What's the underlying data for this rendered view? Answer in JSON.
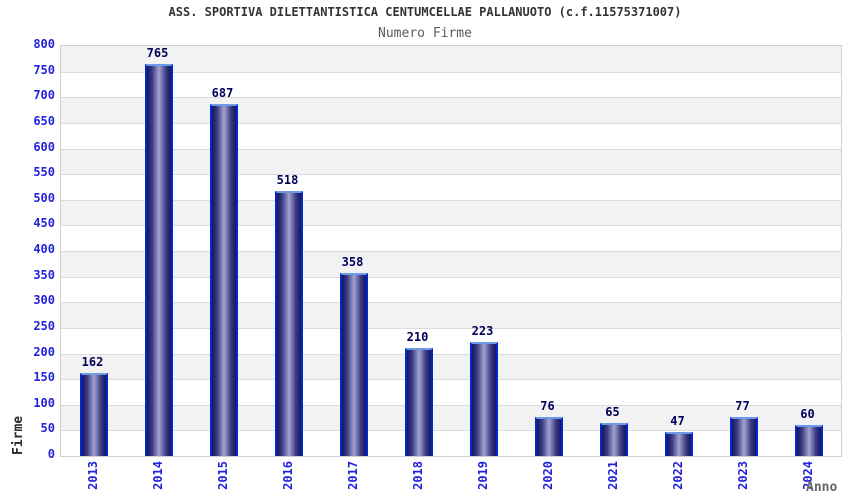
{
  "header": {
    "title": "ASS. SPORTIVA DILETTANTISTICA CENTUMCELLAE PALLANUOTO (c.f.11575371007)",
    "subtitle": "Numero Firme"
  },
  "chart_data": {
    "type": "bar",
    "title": "ASS. SPORTIVA DILETTANTISTICA CENTUMCELLAE PALLANUOTO (c.f.11575371007)",
    "subtitle": "Numero Firme",
    "categories": [
      "2013",
      "2014",
      "2015",
      "2016",
      "2017",
      "2018",
      "2019",
      "2020",
      "2021",
      "2022",
      "2023",
      "2024"
    ],
    "values": [
      162,
      765,
      687,
      518,
      358,
      210,
      223,
      76,
      65,
      47,
      77,
      60
    ],
    "xlabel": "Anno",
    "ylabel": "Firme",
    "ylim": [
      0,
      800
    ],
    "ytick_step": 50,
    "grid": "horizontal-bands-alternating",
    "legend": "none",
    "value_labels_shown": true
  },
  "colors": {
    "background": "#ffffff",
    "title_text": "#333333",
    "subtitle_text": "#5c5c5c",
    "axis_tick_text": "#2222dd",
    "value_label_text": "#00005a",
    "y_axis_title_text": "#2b2b2b",
    "x_axis_title_text": "#666666",
    "band_gray": "#f2f2f2",
    "band_white": "#ffffff",
    "gridline": "#dcdcdc",
    "plot_border": "#cfcfcf",
    "bar_side_border": "#0028cc",
    "bar_top_cap": "#6d9ae6",
    "bar_dark": "#16165e",
    "bar_light": "#a3a3cf"
  }
}
